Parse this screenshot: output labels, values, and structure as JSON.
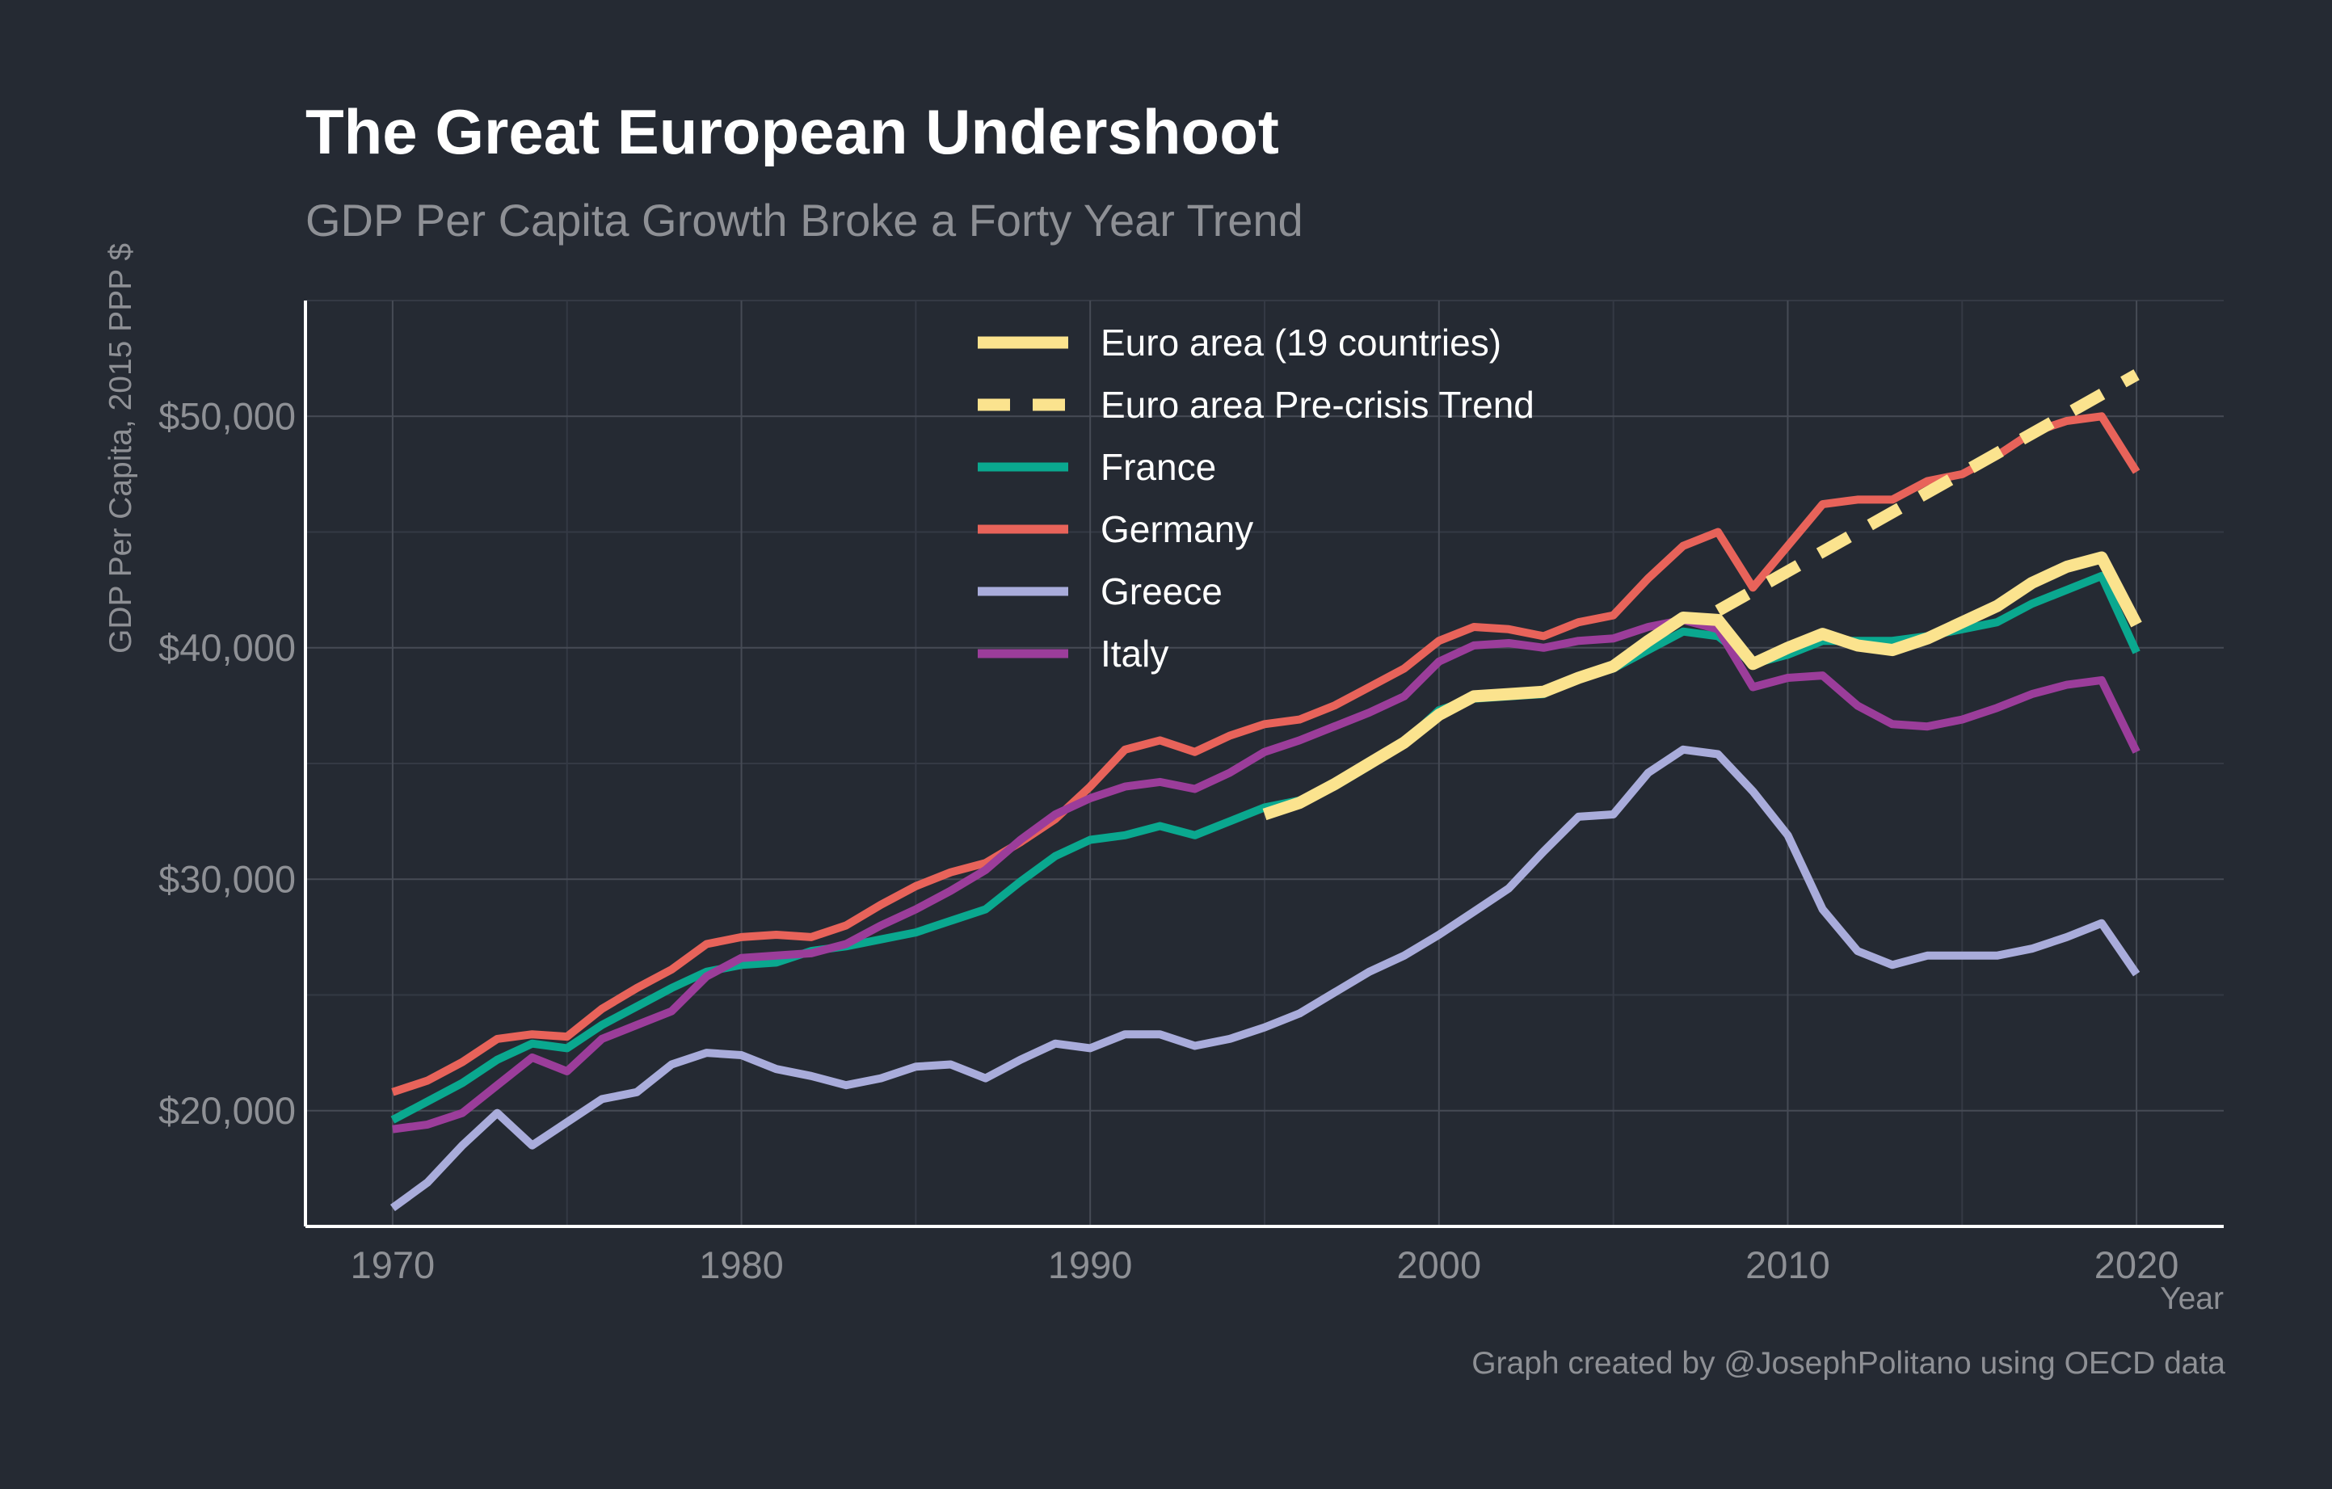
{
  "title": "The Great European Undershoot",
  "subtitle": "GDP Per Capita Growth Broke a Forty Year Trend",
  "caption": "Graph created by @JosephPolitano using OECD data",
  "chart_data": {
    "type": "line",
    "xlabel": "Year",
    "ylabel": "GDP Per Capita, 2015 PPP $",
    "xlim": [
      1967.5,
      2022.5
    ],
    "ylim": [
      15000,
      55000
    ],
    "x_ticks": [
      1970,
      1980,
      1990,
      2000,
      2010,
      2020
    ],
    "x_tick_labels": [
      "1970",
      "1980",
      "1990",
      "2000",
      "2010",
      "2020"
    ],
    "y_ticks": [
      20000,
      30000,
      40000,
      50000
    ],
    "y_tick_labels": [
      "$20,000",
      "$30,000",
      "$40,000",
      "$50,000"
    ],
    "grid": true,
    "legend_position": "top-center",
    "series": [
      {
        "name": "Euro area (19 countries)",
        "color": "#fbe38e",
        "dash": false,
        "x": [
          1995,
          1996,
          1997,
          1998,
          1999,
          2000,
          2001,
          2002,
          2003,
          2004,
          2005,
          2006,
          2007,
          2008,
          2009,
          2010,
          2011,
          2012,
          2013,
          2014,
          2015,
          2016,
          2017,
          2018,
          2019,
          2020
        ],
        "y": [
          32800,
          33300,
          34100,
          35000,
          35900,
          37100,
          37900,
          38000,
          38100,
          38700,
          39200,
          40300,
          41300,
          41200,
          39300,
          40000,
          40600,
          40100,
          39900,
          40400,
          41100,
          41800,
          42800,
          43500,
          43900,
          41000
        ]
      },
      {
        "name": "Euro area Pre-crisis Trend",
        "color": "#fbe38e",
        "dash": true,
        "x": [
          2008,
          2020
        ],
        "y": [
          41600,
          51800
        ]
      },
      {
        "name": "France",
        "color": "#0aa88f",
        "dash": false,
        "x": [
          1970,
          1971,
          1972,
          1973,
          1974,
          1975,
          1976,
          1977,
          1978,
          1979,
          1980,
          1981,
          1982,
          1983,
          1984,
          1985,
          1986,
          1987,
          1988,
          1989,
          1990,
          1991,
          1992,
          1993,
          1994,
          1995,
          1996,
          1997,
          1998,
          1999,
          2000,
          2001,
          2002,
          2003,
          2004,
          2005,
          2006,
          2007,
          2008,
          2009,
          2010,
          2011,
          2012,
          2013,
          2014,
          2015,
          2016,
          2017,
          2018,
          2019,
          2020
        ],
        "y": [
          19600,
          20400,
          21200,
          22200,
          22900,
          22700,
          23700,
          24500,
          25300,
          26000,
          26300,
          26400,
          26900,
          27100,
          27400,
          27700,
          28200,
          28700,
          29900,
          31000,
          31700,
          31900,
          32300,
          31900,
          32500,
          33100,
          33400,
          34000,
          34900,
          35900,
          37300,
          37800,
          37900,
          38000,
          38700,
          39100,
          39900,
          40700,
          40500,
          39300,
          39700,
          40300,
          40300,
          40300,
          40500,
          40800,
          41100,
          41900,
          42500,
          43100,
          39800
        ]
      },
      {
        "name": "Germany",
        "color": "#e8635a",
        "dash": false,
        "x": [
          1970,
          1971,
          1972,
          1973,
          1974,
          1975,
          1976,
          1977,
          1978,
          1979,
          1980,
          1981,
          1982,
          1983,
          1984,
          1985,
          1986,
          1987,
          1988,
          1989,
          1990,
          1991,
          1992,
          1993,
          1994,
          1995,
          1996,
          1997,
          1998,
          1999,
          2000,
          2001,
          2002,
          2003,
          2004,
          2005,
          2006,
          2007,
          2008,
          2009,
          2010,
          2011,
          2012,
          2013,
          2014,
          2015,
          2016,
          2017,
          2018,
          2019,
          2020
        ],
        "y": [
          20800,
          21300,
          22100,
          23100,
          23300,
          23200,
          24400,
          25300,
          26100,
          27200,
          27500,
          27600,
          27500,
          28000,
          28900,
          29700,
          30300,
          30700,
          31600,
          32600,
          34000,
          35600,
          36000,
          35500,
          36200,
          36700,
          36900,
          37500,
          38300,
          39100,
          40300,
          40900,
          40800,
          40500,
          41100,
          41400,
          43000,
          44400,
          45000,
          42600,
          44400,
          46200,
          46400,
          46400,
          47200,
          47500,
          48300,
          49300,
          49800,
          50000,
          47600
        ]
      },
      {
        "name": "Greece",
        "color": "#a9acdb",
        "dash": false,
        "x": [
          1970,
          1971,
          1972,
          1973,
          1974,
          1975,
          1976,
          1977,
          1978,
          1979,
          1980,
          1981,
          1982,
          1983,
          1984,
          1985,
          1986,
          1987,
          1988,
          1989,
          1990,
          1991,
          1992,
          1993,
          1994,
          1995,
          1996,
          1997,
          1998,
          1999,
          2000,
          2001,
          2002,
          2003,
          2004,
          2005,
          2006,
          2007,
          2008,
          2009,
          2010,
          2011,
          2012,
          2013,
          2014,
          2015,
          2016,
          2017,
          2018,
          2019,
          2020
        ],
        "y": [
          15800,
          16900,
          18500,
          19900,
          18500,
          19500,
          20500,
          20800,
          22000,
          22500,
          22400,
          21800,
          21500,
          21100,
          21400,
          21900,
          22000,
          21400,
          22200,
          22900,
          22700,
          23300,
          23300,
          22800,
          23100,
          23600,
          24200,
          25100,
          26000,
          26700,
          27600,
          28600,
          29600,
          31200,
          32700,
          32800,
          34600,
          35600,
          35400,
          33800,
          31900,
          28700,
          26900,
          26300,
          26700,
          26700,
          26700,
          27000,
          27500,
          28100,
          25900
        ]
      },
      {
        "name": "Italy",
        "color": "#9b3d9a",
        "dash": false,
        "x": [
          1970,
          1971,
          1972,
          1973,
          1974,
          1975,
          1976,
          1977,
          1978,
          1979,
          1980,
          1981,
          1982,
          1983,
          1984,
          1985,
          1986,
          1987,
          1988,
          1989,
          1990,
          1991,
          1992,
          1993,
          1994,
          1995,
          1996,
          1997,
          1998,
          1999,
          2000,
          2001,
          2002,
          2003,
          2004,
          2005,
          2006,
          2007,
          2008,
          2009,
          2010,
          2011,
          2012,
          2013,
          2014,
          2015,
          2016,
          2017,
          2018,
          2019,
          2020
        ],
        "y": [
          19200,
          19400,
          19900,
          21100,
          22300,
          21700,
          23100,
          23700,
          24300,
          25800,
          26600,
          26700,
          26800,
          27200,
          28000,
          28700,
          29500,
          30400,
          31700,
          32800,
          33500,
          34000,
          34200,
          33900,
          34600,
          35500,
          36000,
          36600,
          37200,
          37900,
          39400,
          40100,
          40200,
          40000,
          40300,
          40400,
          40900,
          41200,
          40800,
          38300,
          38700,
          38800,
          37500,
          36700,
          36600,
          36900,
          37400,
          38000,
          38400,
          38600,
          35500
        ]
      }
    ]
  }
}
